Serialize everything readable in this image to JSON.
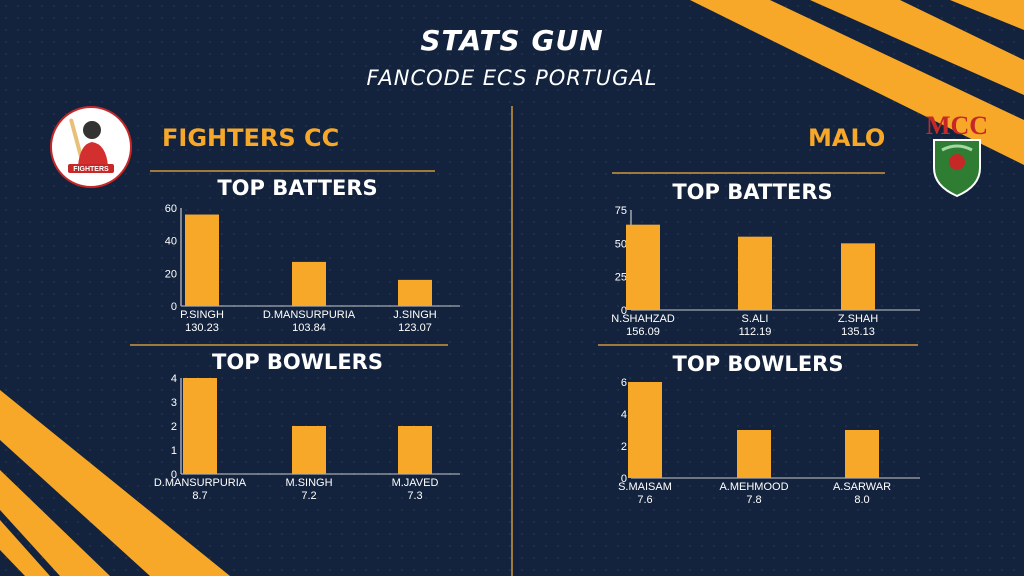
{
  "header": {
    "title": "STATS GUN",
    "subtitle": "FANCODE ECS PORTUGAL"
  },
  "teams": {
    "left": {
      "name": "FIGHTERS CC",
      "logo_text": "FIGHTERS"
    },
    "right": {
      "name": "MALO",
      "logo_text": "MCC"
    }
  },
  "colors": {
    "background": "#13233d",
    "accent": "#f7a829",
    "bar": "#f7a829",
    "divider": "#a07a3c"
  },
  "chart_data": [
    {
      "id": "fighters-batters",
      "type": "bar",
      "title": "TOP BATTERS",
      "categories": [
        "P.SINGH",
        "D.MANSURPURIA",
        "J.SINGH"
      ],
      "sublabels": [
        "130.23",
        "103.84",
        "123.07"
      ],
      "values": [
        56,
        27,
        16
      ],
      "ylim": [
        0,
        60
      ],
      "yticks": [
        0,
        20,
        40,
        60
      ],
      "grid": false
    },
    {
      "id": "fighters-bowlers",
      "type": "bar",
      "title": "TOP BOWLERS",
      "categories": [
        "D.MANSURPURIA",
        "M.SINGH",
        "M.JAVED"
      ],
      "sublabels": [
        "8.7",
        "7.2",
        "7.3"
      ],
      "values": [
        4,
        2,
        2
      ],
      "ylim": [
        0,
        4
      ],
      "yticks": [
        0,
        1,
        2,
        3,
        4
      ],
      "grid": false
    },
    {
      "id": "malo-batters",
      "type": "bar",
      "title": "TOP BATTERS",
      "categories": [
        "N.SHAHZAD",
        "S.ALI",
        "Z.SHAH"
      ],
      "sublabels": [
        "156.09",
        "112.19",
        "135.13"
      ],
      "values": [
        64,
        55,
        50
      ],
      "ylim": [
        0,
        75
      ],
      "yticks": [
        0,
        25,
        50,
        75
      ],
      "grid": false
    },
    {
      "id": "malo-bowlers",
      "type": "bar",
      "title": "TOP BOWLERS",
      "categories": [
        "S.MAISAM",
        "A.MEHMOOD",
        "A.SARWAR"
      ],
      "sublabels": [
        "7.6",
        "7.8",
        "8.0"
      ],
      "values": [
        6,
        3,
        3
      ],
      "ylim": [
        0,
        6
      ],
      "yticks": [
        0,
        2,
        4,
        6
      ],
      "grid": false
    }
  ]
}
